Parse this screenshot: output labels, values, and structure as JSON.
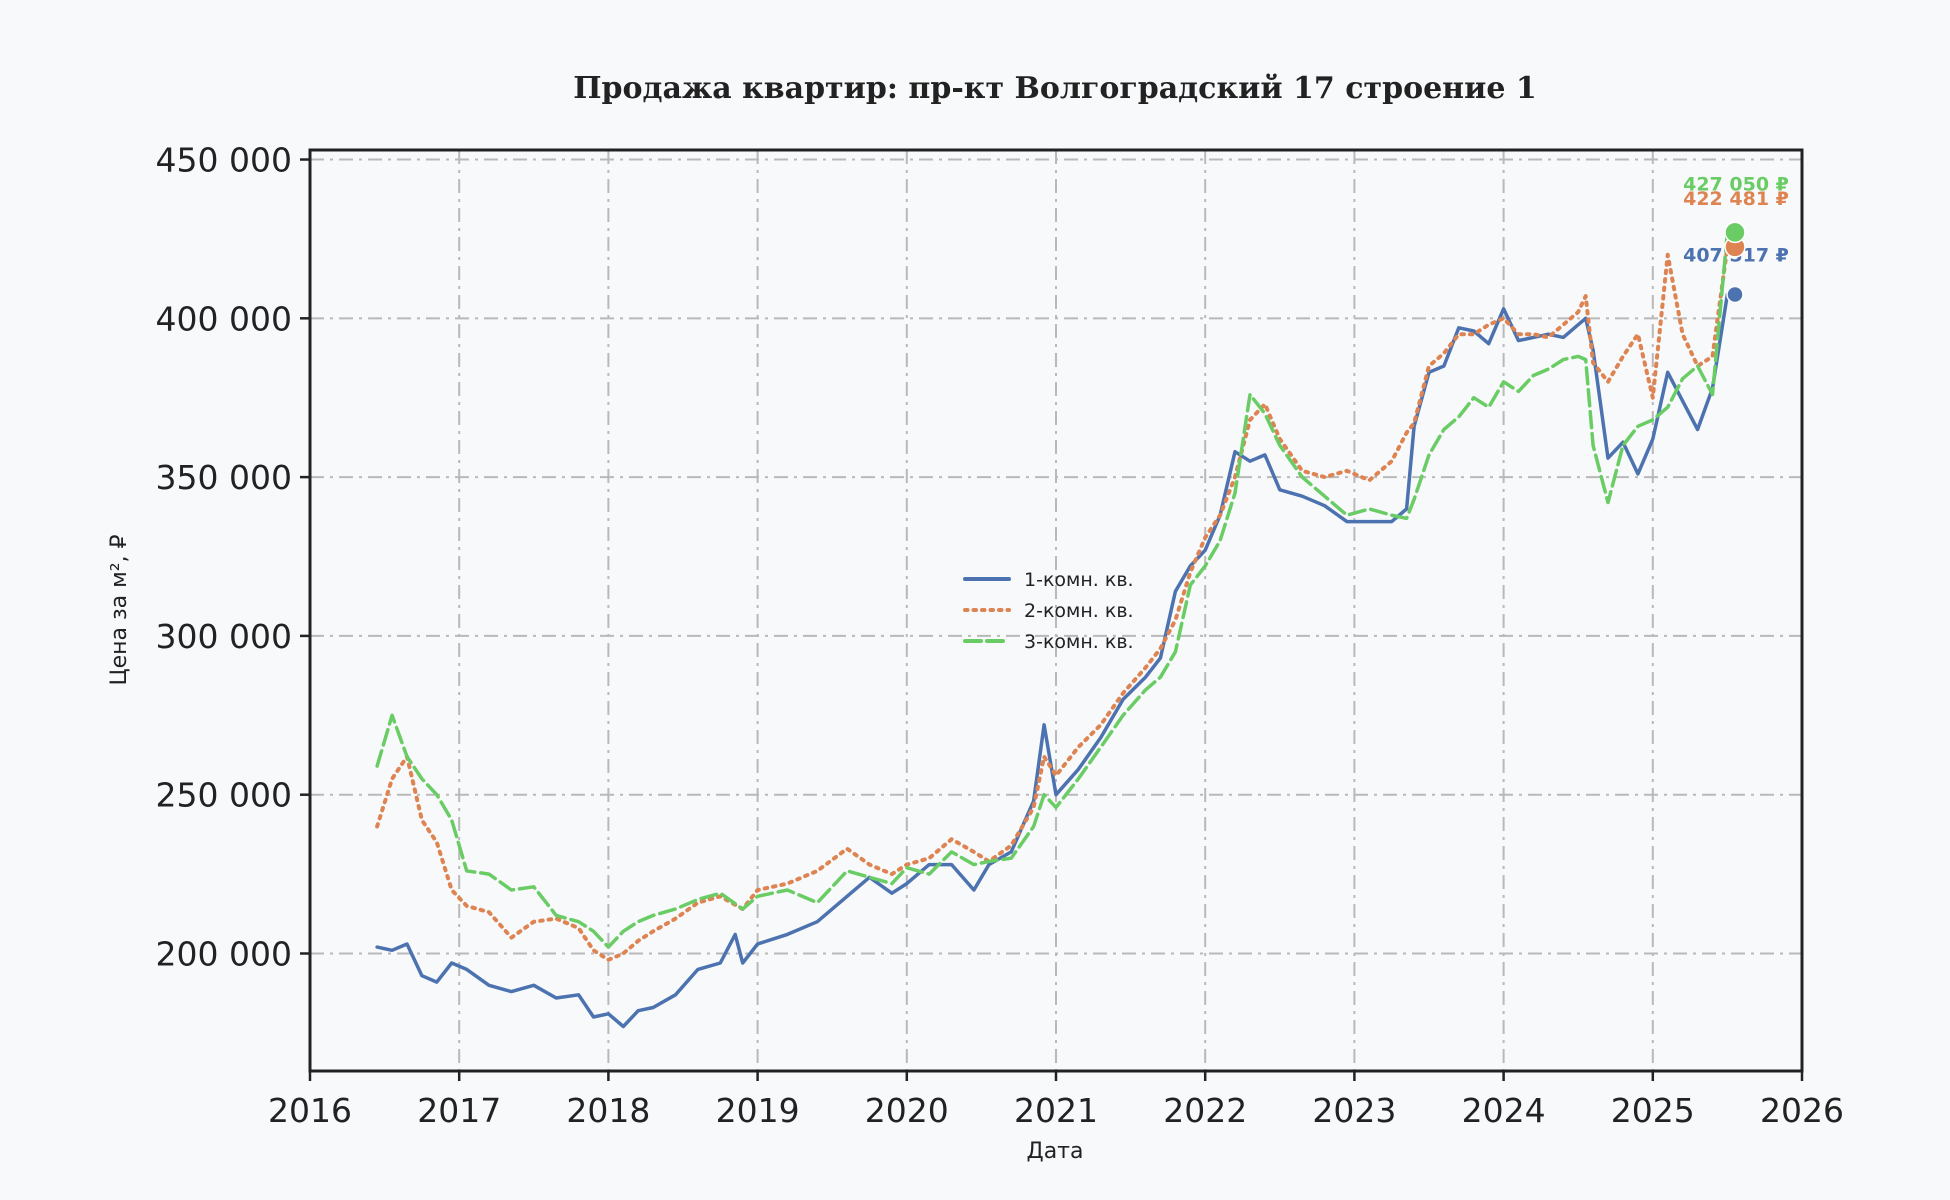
{
  "chart_data": {
    "type": "line",
    "title": "Продажа квартир: пр-кт Волгоградский 17 строение 1",
    "xlabel": "Дата",
    "ylabel": "Цена за м², ₽",
    "xlim": [
      2016,
      2026
    ],
    "ylim": [
      163000,
      453000
    ],
    "x_ticks": [
      2016,
      2017,
      2018,
      2019,
      2020,
      2021,
      2022,
      2023,
      2024,
      2025,
      2026
    ],
    "x_tick_labels": [
      "2016",
      "2017",
      "2018",
      "2019",
      "2020",
      "2021",
      "2022",
      "2023",
      "2024",
      "2025",
      "2026"
    ],
    "y_ticks": [
      200000,
      250000,
      300000,
      350000,
      400000,
      450000
    ],
    "y_tick_labels": [
      "200 000",
      "250 000",
      "300 000",
      "350 000",
      "400 000",
      "450 000"
    ],
    "grid": true,
    "legend_position": "center",
    "series": [
      {
        "name": "1-комн. кв.",
        "color": "#4c72b0",
        "style": "solid",
        "end_label": "407 517 ₽",
        "end_value": 407517,
        "x": [
          2016.45,
          2016.55,
          2016.65,
          2016.75,
          2016.85,
          2016.95,
          2017.05,
          2017.2,
          2017.35,
          2017.5,
          2017.65,
          2017.8,
          2017.9,
          2018.0,
          2018.1,
          2018.2,
          2018.3,
          2018.45,
          2018.6,
          2018.75,
          2018.85,
          2018.9,
          2019.0,
          2019.2,
          2019.4,
          2019.6,
          2019.75,
          2019.9,
          2020.0,
          2020.15,
          2020.3,
          2020.45,
          2020.55,
          2020.7,
          2020.85,
          2020.92,
          2021.0,
          2021.15,
          2021.3,
          2021.45,
          2021.6,
          2021.7,
          2021.8,
          2021.9,
          2022.0,
          2022.1,
          2022.2,
          2022.3,
          2022.4,
          2022.5,
          2022.65,
          2022.8,
          2022.95,
          2023.1,
          2023.25,
          2023.35,
          2023.4,
          2023.5,
          2023.6,
          2023.7,
          2023.8,
          2023.9,
          2024.0,
          2024.1,
          2024.2,
          2024.3,
          2024.4,
          2024.5,
          2024.55,
          2024.6,
          2024.7,
          2024.8,
          2024.9,
          2025.0,
          2025.1,
          2025.2,
          2025.3,
          2025.4,
          2025.5
        ],
        "y": [
          202000,
          201000,
          203000,
          193000,
          191000,
          197000,
          195000,
          190000,
          188000,
          190000,
          186000,
          187000,
          180000,
          181000,
          177000,
          182000,
          183000,
          187000,
          195000,
          197000,
          206000,
          197000,
          203000,
          206000,
          210000,
          218000,
          224000,
          219000,
          222000,
          228000,
          228000,
          220000,
          228000,
          232000,
          248000,
          272000,
          250000,
          258000,
          268000,
          280000,
          287000,
          293000,
          314000,
          322000,
          327000,
          338000,
          358000,
          355000,
          357000,
          346000,
          344000,
          341000,
          336000,
          336000,
          336000,
          340000,
          366000,
          383000,
          385000,
          397000,
          396000,
          392000,
          403000,
          393000,
          394000,
          395000,
          394000,
          398000,
          400000,
          390000,
          356000,
          361000,
          351000,
          362000,
          383000,
          374000,
          365000,
          378000,
          407517
        ]
      },
      {
        "name": "2-комн. кв.",
        "color": "#dd8452",
        "style": "dotted",
        "end_label": "422 481 ₽",
        "end_value": 422481,
        "x": [
          2016.45,
          2016.55,
          2016.65,
          2016.75,
          2016.85,
          2016.95,
          2017.05,
          2017.2,
          2017.35,
          2017.5,
          2017.65,
          2017.8,
          2017.9,
          2018.0,
          2018.1,
          2018.2,
          2018.3,
          2018.45,
          2018.6,
          2018.75,
          2018.9,
          2019.0,
          2019.2,
          2019.4,
          2019.6,
          2019.75,
          2019.9,
          2020.0,
          2020.15,
          2020.3,
          2020.45,
          2020.55,
          2020.7,
          2020.85,
          2020.92,
          2021.0,
          2021.15,
          2021.3,
          2021.45,
          2021.6,
          2021.7,
          2021.8,
          2021.9,
          2022.0,
          2022.1,
          2022.2,
          2022.3,
          2022.4,
          2022.5,
          2022.65,
          2022.8,
          2022.95,
          2023.1,
          2023.25,
          2023.35,
          2023.4,
          2023.5,
          2023.6,
          2023.7,
          2023.8,
          2023.9,
          2024.0,
          2024.1,
          2024.2,
          2024.3,
          2024.4,
          2024.5,
          2024.55,
          2024.6,
          2024.7,
          2024.8,
          2024.9,
          2025.0,
          2025.1,
          2025.2,
          2025.3,
          2025.4,
          2025.5
        ],
        "y": [
          240000,
          255000,
          262000,
          242000,
          235000,
          220000,
          215000,
          213000,
          205000,
          210000,
          211000,
          208000,
          201000,
          198000,
          200000,
          204000,
          207000,
          211000,
          216000,
          218000,
          214000,
          220000,
          222000,
          226000,
          233000,
          228000,
          225000,
          228000,
          230000,
          236000,
          232000,
          229000,
          234000,
          246000,
          262000,
          256000,
          265000,
          272000,
          282000,
          290000,
          296000,
          305000,
          320000,
          331000,
          338000,
          350000,
          368000,
          373000,
          362000,
          352000,
          350000,
          352000,
          349000,
          355000,
          364000,
          367000,
          385000,
          389000,
          395000,
          395000,
          398000,
          400000,
          395000,
          395000,
          394000,
          398000,
          402000,
          407000,
          386000,
          380000,
          388000,
          395000,
          375000,
          420000,
          395000,
          385000,
          388000,
          422481
        ]
      },
      {
        "name": "3-комн. кв.",
        "color": "#6acc64",
        "style": "dashed",
        "end_label": "427 050 ₽",
        "end_value": 427050,
        "x": [
          2016.45,
          2016.55,
          2016.65,
          2016.75,
          2016.85,
          2016.95,
          2017.05,
          2017.2,
          2017.35,
          2017.5,
          2017.65,
          2017.8,
          2017.9,
          2018.0,
          2018.1,
          2018.2,
          2018.3,
          2018.45,
          2018.6,
          2018.75,
          2018.9,
          2019.0,
          2019.2,
          2019.4,
          2019.6,
          2019.75,
          2019.9,
          2020.0,
          2020.15,
          2020.3,
          2020.45,
          2020.55,
          2020.7,
          2020.85,
          2020.92,
          2021.0,
          2021.15,
          2021.3,
          2021.45,
          2021.6,
          2021.7,
          2021.8,
          2021.9,
          2022.0,
          2022.1,
          2022.2,
          2022.3,
          2022.4,
          2022.5,
          2022.65,
          2022.8,
          2022.95,
          2023.1,
          2023.25,
          2023.35,
          2023.4,
          2023.5,
          2023.6,
          2023.7,
          2023.8,
          2023.9,
          2024.0,
          2024.1,
          2024.2,
          2024.3,
          2024.4,
          2024.5,
          2024.55,
          2024.6,
          2024.7,
          2024.8,
          2024.9,
          2025.0,
          2025.1,
          2025.2,
          2025.3,
          2025.4,
          2025.5
        ],
        "y": [
          259000,
          275000,
          262000,
          255000,
          250000,
          242000,
          226000,
          225000,
          220000,
          221000,
          212000,
          210000,
          207000,
          202000,
          207000,
          210000,
          212000,
          214000,
          217000,
          219000,
          214000,
          218000,
          220000,
          216000,
          226000,
          224000,
          222000,
          227000,
          225000,
          232000,
          228000,
          229000,
          230000,
          240000,
          250000,
          246000,
          255000,
          265000,
          275000,
          283000,
          287000,
          295000,
          316000,
          322000,
          330000,
          345000,
          376000,
          370000,
          360000,
          350000,
          344000,
          338000,
          340000,
          338000,
          337000,
          343000,
          357000,
          365000,
          369000,
          375000,
          372000,
          380000,
          377000,
          382000,
          384000,
          387000,
          388000,
          387000,
          360000,
          342000,
          360000,
          366000,
          368000,
          372000,
          381000,
          385000,
          376000,
          427050
        ]
      }
    ]
  }
}
